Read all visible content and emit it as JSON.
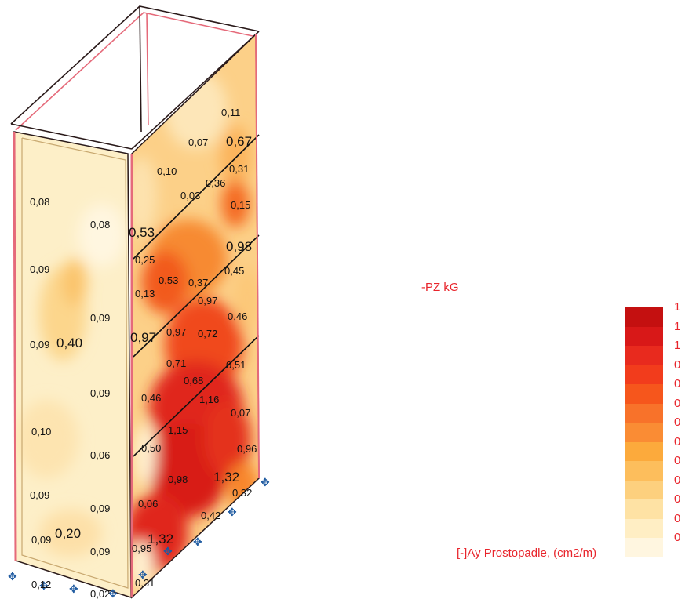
{
  "load_case": "-PZ  kG",
  "legend": {
    "title": "[-]Ay Prostopadle, (cm2/m)",
    "entries": [
      {
        "label": "1",
        "color": "#c41010"
      },
      {
        "label": "1",
        "color": "#d81818"
      },
      {
        "label": "1",
        "color": "#e82a1e"
      },
      {
        "label": "0",
        "color": "#f23c1c"
      },
      {
        "label": "0",
        "color": "#f6561c"
      },
      {
        "label": "0",
        "color": "#f8722a"
      },
      {
        "label": "0",
        "color": "#fa8c34"
      },
      {
        "label": "0",
        "color": "#fcaa3c"
      },
      {
        "label": "0",
        "color": "#fdbe5c"
      },
      {
        "label": "0",
        "color": "#fdd07e"
      },
      {
        "label": "0",
        "color": "#fee2a4"
      },
      {
        "label": "0",
        "color": "#ffeec4"
      },
      {
        "label": "0",
        "color": "#fff6e0"
      }
    ]
  },
  "left_wall_labels": [
    "0,08",
    "0,08",
    "0,09",
    "0,09",
    "0,09",
    "0,40",
    "0,09",
    "0,10",
    "0,06",
    "0,09",
    "0,09",
    "0,09",
    "0,20",
    "0,09",
    "0,12",
    "0,02"
  ],
  "right_wall_labels": [
    "0,11",
    "0,07",
    "0,67",
    "0,10",
    "0,31",
    "0,36",
    "0,03",
    "0,15",
    "0,53",
    "0,98",
    "0,25",
    "0,53",
    "0,37",
    "0,45",
    "0,13",
    "0,97",
    "0,97",
    "0,97",
    "0,72",
    "0,46",
    "0,71",
    "0,51",
    "0,68",
    "0,46",
    "1,16",
    "0,07",
    "1,15",
    "0,50",
    "0,96",
    "0,98",
    "1,32",
    "0,06",
    "0,32",
    "0,42",
    "0,95",
    "1,32",
    "0,31"
  ]
}
